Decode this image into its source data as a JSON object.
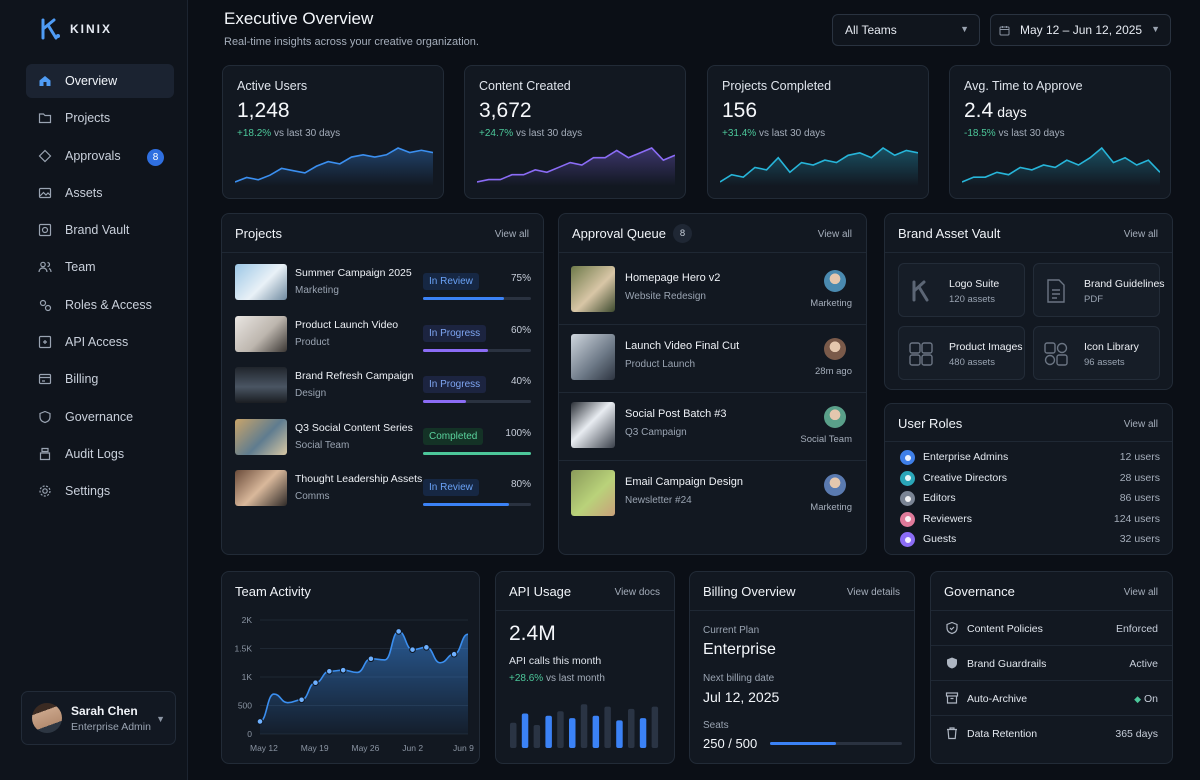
{
  "brand": {
    "name": "KINIX"
  },
  "nav": [
    {
      "label": "Overview",
      "icon": "home-icon",
      "active": true
    },
    {
      "label": "Projects",
      "icon": "folder-icon"
    },
    {
      "label": "Approvals",
      "icon": "diamond-icon",
      "badge": "8"
    },
    {
      "label": "Assets",
      "icon": "image-icon"
    },
    {
      "label": "Brand Vault",
      "icon": "vault-icon"
    },
    {
      "label": "Team",
      "icon": "users-icon"
    },
    {
      "label": "Roles & Access",
      "icon": "roles-icon"
    },
    {
      "label": "API Access",
      "icon": "api-icon"
    },
    {
      "label": "Billing",
      "icon": "billing-icon"
    },
    {
      "label": "Governance",
      "icon": "shield-icon"
    },
    {
      "label": "Audit Logs",
      "icon": "audit-icon"
    },
    {
      "label": "Settings",
      "icon": "gear-icon"
    }
  ],
  "user": {
    "name": "Sarah Chen",
    "role": "Enterprise Admin"
  },
  "header": {
    "title": "Executive Overview",
    "subtitle": "Real-time insights across your creative organization.",
    "team_filter": "All Teams",
    "date_range": "May 12 – Jun 12, 2025"
  },
  "stats": [
    {
      "label": "Active Users",
      "value": "1,248",
      "unit": "",
      "delta": "+18.2%",
      "delta_suffix": "vs last 30 days",
      "color": "#3b8ff0",
      "trend": [
        3,
        5,
        4,
        6,
        9,
        8,
        7,
        10,
        12,
        11,
        14,
        15,
        14,
        15,
        18,
        16,
        17,
        16
      ]
    },
    {
      "label": "Content Created",
      "value": "3,672",
      "unit": "",
      "delta": "+24.7%",
      "delta_suffix": "vs last 30 days",
      "color": "#8b6cf6",
      "trend": [
        4,
        5,
        5,
        7,
        7,
        9,
        8,
        10,
        12,
        11,
        14,
        14,
        17,
        14,
        16,
        18,
        13,
        15
      ]
    },
    {
      "label": "Projects Completed",
      "value": "156",
      "unit": "",
      "delta": "+31.4%",
      "delta_suffix": "vs last 30 days",
      "color": "#27b5d9",
      "trend": [
        3,
        6,
        5,
        9,
        8,
        13,
        7,
        11,
        10,
        12,
        11,
        14,
        15,
        13,
        17,
        14,
        16,
        15
      ]
    },
    {
      "label": "Avg. Time to Approve",
      "value": "2.4",
      "unit": "days",
      "delta": "-18.5%",
      "delta_suffix": "vs last 30 days",
      "color": "#27b5d9",
      "trend": [
        4,
        6,
        6,
        8,
        7,
        10,
        9,
        11,
        10,
        13,
        11,
        14,
        18,
        12,
        14,
        11,
        13,
        8
      ]
    }
  ],
  "projects": {
    "title": "Projects",
    "action": "View all",
    "items": [
      {
        "name": "Summer Campaign 2025",
        "team": "Marketing",
        "status": "In Review",
        "kind": "review",
        "progress": 75,
        "pct": "75%",
        "thumb": "linear-gradient(135deg,#9cc7e6,#e9f1f7 55%,#6f8aa0)"
      },
      {
        "name": "Product Launch Video",
        "team": "Product",
        "status": "In Progress",
        "kind": "prog",
        "progress": 60,
        "pct": "60%",
        "thumb": "linear-gradient(135deg,#e9e6e2,#bdb6ae 55%,#3a3633)"
      },
      {
        "name": "Brand Refresh Campaign",
        "team": "Design",
        "status": "In Progress",
        "kind": "prog",
        "progress": 40,
        "pct": "40%",
        "thumb": "linear-gradient(180deg,#20252c,#4a5563 55%,#1a1d22)"
      },
      {
        "name": "Q3 Social Content Series",
        "team": "Social Team",
        "status": "Completed",
        "kind": "done",
        "progress": 100,
        "pct": "100%",
        "thumb": "linear-gradient(135deg,#c9a46a,#5f7c8f 55%,#d8c8a4)"
      },
      {
        "name": "Thought Leadership Assets",
        "team": "Comms",
        "status": "In Review",
        "kind": "review",
        "progress": 80,
        "pct": "80%",
        "thumb": "linear-gradient(135deg,#6a4b3a,#d9b89b 50%,#2f2a28)"
      }
    ]
  },
  "approvals": {
    "title": "Approval Queue",
    "count": "8",
    "action": "View all",
    "items": [
      {
        "name": "Homepage Hero v2",
        "sub": "Website Redesign",
        "meta": "Marketing",
        "thumb": "linear-gradient(135deg,#6e7a4a,#d8c6a6 55%,#3d4a2e)",
        "av": "#4a8ab0"
      },
      {
        "name": "Launch Video Final Cut",
        "sub": "Product Launch",
        "meta": "28m ago",
        "thumb": "linear-gradient(135deg,#cfd6de,#6c7886 60%,#2d3440)",
        "av": "#7a5a4a"
      },
      {
        "name": "Social Post Batch #3",
        "sub": "Q3 Campaign",
        "meta": "Social Team",
        "thumb": "linear-gradient(135deg,#2a2f36,#e8ecf1 45%,#3a404a)",
        "av": "#5aa08a"
      },
      {
        "name": "Email Campaign Design",
        "sub": "Newsletter #24",
        "meta": "Marketing",
        "thumb": "linear-gradient(135deg,#8a9a5a,#b9d27a 55%,#c9a07a)",
        "av": "#5a7ab0"
      }
    ]
  },
  "vault": {
    "title": "Brand Asset Vault",
    "action": "View all",
    "items": [
      {
        "name": "Logo Suite",
        "sub": "120 assets",
        "icon": "logo-k-icon"
      },
      {
        "name": "Brand Guidelines",
        "sub": "PDF",
        "icon": "document-icon"
      },
      {
        "name": "Product Images",
        "sub": "480 assets",
        "icon": "image-grid-icon"
      },
      {
        "name": "Icon Library",
        "sub": "96 assets",
        "icon": "icon-grid-icon"
      }
    ]
  },
  "roles": {
    "title": "User Roles",
    "action": "View all",
    "items": [
      {
        "name": "Enterprise Admins",
        "count": "12 users",
        "color": "#3f7fe8"
      },
      {
        "name": "Creative Directors",
        "count": "28 users",
        "color": "#2aa6b8"
      },
      {
        "name": "Editors",
        "count": "86 users",
        "color": "#7a8494"
      },
      {
        "name": "Reviewers",
        "count": "124 users",
        "color": "#e07a9a"
      },
      {
        "name": "Guests",
        "count": "32 users",
        "color": "#8b6cf6"
      }
    ]
  },
  "activity": {
    "title": "Team Activity"
  },
  "chart_data": {
    "type": "area",
    "title": "Team Activity",
    "x_ticks": [
      "May 12",
      "May 19",
      "May 26",
      "Jun 2",
      "Jun 9"
    ],
    "y_ticks": [
      "2K",
      "1.5K",
      "1K",
      "500",
      "0"
    ],
    "ylim": [
      0,
      2000
    ],
    "x": [
      0,
      1,
      2,
      3,
      4,
      5,
      6,
      7,
      8,
      9,
      10,
      11,
      12,
      13,
      14,
      15
    ],
    "values": [
      220,
      700,
      550,
      600,
      900,
      1100,
      1120,
      1080,
      1320,
      1300,
      1800,
      1480,
      1520,
      1250,
      1400,
      1750
    ],
    "markers": [
      0,
      3,
      4,
      5,
      6,
      8,
      10,
      11,
      12,
      14
    ],
    "grid": true,
    "color": "#3b8ff0"
  },
  "api": {
    "title": "API Usage",
    "action": "View docs",
    "value": "2.4M",
    "label": "API calls this month",
    "delta": "+28.6%",
    "delta_suffix": "vs last month",
    "bars": [
      0.55,
      0.75,
      0.5,
      0.7,
      0.8,
      0.65,
      0.95,
      0.7,
      0.9,
      0.6,
      0.85,
      0.65,
      0.9
    ]
  },
  "billing": {
    "title": "Billing Overview",
    "action": "View details",
    "plan_label": "Current Plan",
    "plan": "Enterprise",
    "next_label": "Next billing date",
    "next": "Jul 12, 2025",
    "seats_label": "Seats",
    "seats": "250 / 500",
    "seats_used_fraction": 0.5
  },
  "governance": {
    "title": "Governance",
    "action": "View all",
    "items": [
      {
        "name": "Content Policies",
        "status": "Enforced",
        "icon": "policy-icon"
      },
      {
        "name": "Brand Guardrails",
        "status": "Active",
        "icon": "guardrail-icon"
      },
      {
        "name": "Auto-Archive",
        "status": "On",
        "icon": "archive-icon",
        "dot": true
      },
      {
        "name": "Data Retention",
        "status": "365 days",
        "icon": "trash-icon"
      }
    ]
  }
}
